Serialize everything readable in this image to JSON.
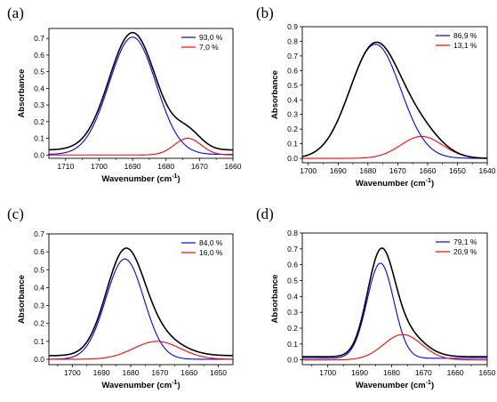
{
  "chart_data": [
    {
      "panel": "(a)",
      "type": "line",
      "xlabel": "Wavenumber (cm",
      "xlabel_sup": "-1",
      "xlabel_close": ")",
      "ylabel": "Absorbance",
      "xlim": [
        1715,
        1660
      ],
      "ylim": [
        -0.02,
        0.76
      ],
      "xticks": [
        "1710",
        "1700",
        "1690",
        "1680",
        "1670",
        "1660"
      ],
      "xtick_values": [
        1710,
        1700,
        1690,
        1680,
        1670,
        1660
      ],
      "yticks": [
        "0.0",
        "0.1",
        "0.2",
        "0.3",
        "0.4",
        "0.5",
        "0.6",
        "0.7"
      ],
      "ytick_values": [
        0,
        0.1,
        0.2,
        0.3,
        0.4,
        0.5,
        0.6,
        0.7
      ],
      "legend": [
        {
          "label": "93,0 %",
          "color": "#0000ff"
        },
        {
          "label": "7,0 %",
          "color": "#ff0000"
        }
      ],
      "series": [
        {
          "color": "#0000ff",
          "center": 1690,
          "height": 0.705,
          "sigma": 7.0,
          "baseline": 0.003
        },
        {
          "color": "#ff0000",
          "center": 1673.5,
          "height": 0.1,
          "sigma": 4.0,
          "baseline": 0.0
        },
        {
          "color": "#000000",
          "sum": true,
          "baseline": 0.03
        }
      ]
    },
    {
      "panel": "(b)",
      "type": "line",
      "xlabel": "Wavenumber (cm",
      "xlabel_sup": "-1",
      "xlabel_close": ")",
      "ylabel": "Absorbance",
      "xlim": [
        1702,
        1640
      ],
      "ylim": [
        -0.03,
        0.9
      ],
      "xticks": [
        "1700",
        "1690",
        "1680",
        "1670",
        "1660",
        "1650",
        "1640"
      ],
      "xtick_values": [
        1700,
        1690,
        1680,
        1670,
        1660,
        1650,
        1640
      ],
      "yticks": [
        "0.0",
        "0.1",
        "0.2",
        "0.3",
        "0.4",
        "0.5",
        "0.6",
        "0.7",
        "0.8",
        "0.9"
      ],
      "ytick_values": [
        0,
        0.1,
        0.2,
        0.3,
        0.4,
        0.5,
        0.6,
        0.7,
        0.8,
        0.9
      ],
      "legend": [
        {
          "label": "86,9 %",
          "color": "#0000ff"
        },
        {
          "label": "13,1 %",
          "color": "#ff0000"
        }
      ],
      "series": [
        {
          "color": "#0000ff",
          "center": 1677.5,
          "height": 0.78,
          "sigma": 8.5,
          "baseline": 0.0
        },
        {
          "color": "#ff0000",
          "center": 1662,
          "height": 0.15,
          "sigma": 7.0,
          "baseline": 0.0
        },
        {
          "color": "#000000",
          "sum": true,
          "baseline": 0.0
        }
      ]
    },
    {
      "panel": "(c)",
      "type": "line",
      "xlabel": "Wavenumber (cm",
      "xlabel_sup": "-1",
      "xlabel_close": ")",
      "ylabel": "Absorbance",
      "xlim": [
        1708,
        1645
      ],
      "ylim": [
        -0.03,
        0.7
      ],
      "xticks": [
        "1700",
        "1690",
        "1680",
        "1670",
        "1660",
        "1650"
      ],
      "xtick_values": [
        1700,
        1690,
        1680,
        1670,
        1660,
        1650
      ],
      "yticks": [
        "0.0",
        "0.1",
        "0.2",
        "0.3",
        "0.4",
        "0.5",
        "0.6",
        "0.7"
      ],
      "ytick_values": [
        0,
        0.1,
        0.2,
        0.3,
        0.4,
        0.5,
        0.6,
        0.7
      ],
      "legend": [
        {
          "label": "84,0 %",
          "color": "#0000ff"
        },
        {
          "label": "16,0 %",
          "color": "#ff0000"
        }
      ],
      "series": [
        {
          "color": "#0000ff",
          "center": 1682,
          "height": 0.56,
          "sigma": 6.5,
          "baseline": 0.0
        },
        {
          "color": "#ff0000",
          "center": 1671,
          "height": 0.1,
          "sigma": 8.0,
          "baseline": 0.0
        },
        {
          "color": "#000000",
          "sum": true,
          "baseline": 0.02
        }
      ]
    },
    {
      "panel": "(d)",
      "type": "line",
      "xlabel": "Wavenumber (cm",
      "xlabel_sup": "-1",
      "xlabel_close": ")",
      "ylabel": "Absorbance",
      "xlim": [
        1708,
        1650
      ],
      "ylim": [
        -0.03,
        0.8
      ],
      "xticks": [
        "1700",
        "1690",
        "1680",
        "1670",
        "1660",
        "1650"
      ],
      "xtick_values": [
        1700,
        1690,
        1680,
        1670,
        1660,
        1650
      ],
      "yticks": [
        "0.0",
        "0.1",
        "0.2",
        "0.3",
        "0.4",
        "0.5",
        "0.6",
        "0.7",
        "0.8"
      ],
      "ytick_values": [
        0,
        0.1,
        0.2,
        0.3,
        0.4,
        0.5,
        0.6,
        0.7,
        0.8
      ],
      "legend": [
        {
          "label": "79,1 %",
          "color": "#0000ff"
        },
        {
          "label": "20,9 %",
          "color": "#ff0000"
        }
      ],
      "series": [
        {
          "color": "#0000ff",
          "center": 1683.5,
          "height": 0.6,
          "sigma": 4.2,
          "baseline": 0.01
        },
        {
          "color": "#ff0000",
          "center": 1676.5,
          "height": 0.16,
          "sigma": 6.0,
          "baseline": 0.0
        },
        {
          "color": "#000000",
          "sum": true,
          "baseline": 0.02
        }
      ]
    }
  ]
}
